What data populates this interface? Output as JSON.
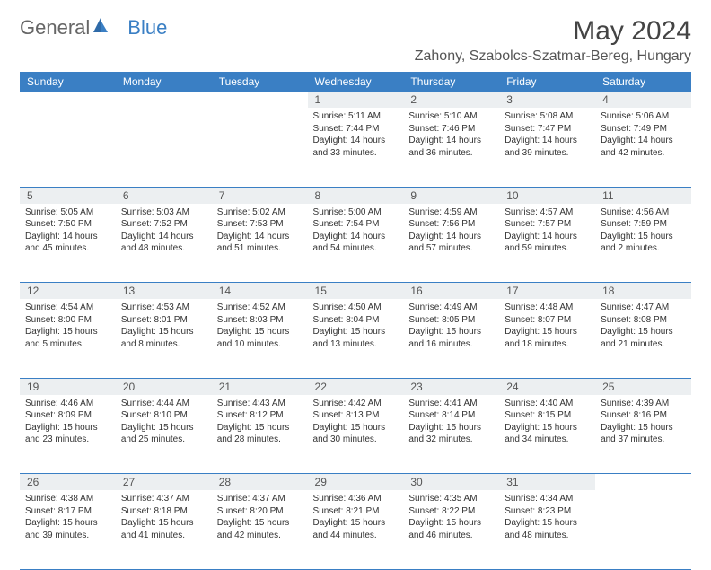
{
  "brand": {
    "general": "General",
    "blue": "Blue"
  },
  "title": "May 2024",
  "location": "Zahony, Szabolcs-Szatmar-Bereg, Hungary",
  "colors": {
    "header_bg": "#3a7fc4",
    "header_text": "#ffffff",
    "daynum_bg": "#eceff1",
    "border": "#3a7fc4",
    "body_text": "#333333",
    "title_text": "#444444"
  },
  "weekdays": [
    "Sunday",
    "Monday",
    "Tuesday",
    "Wednesday",
    "Thursday",
    "Friday",
    "Saturday"
  ],
  "weeks": [
    {
      "nums": [
        "",
        "",
        "",
        "1",
        "2",
        "3",
        "4"
      ],
      "cells": [
        null,
        null,
        null,
        {
          "sunrise": "Sunrise: 5:11 AM",
          "sunset": "Sunset: 7:44 PM",
          "day1": "Daylight: 14 hours",
          "day2": "and 33 minutes."
        },
        {
          "sunrise": "Sunrise: 5:10 AM",
          "sunset": "Sunset: 7:46 PM",
          "day1": "Daylight: 14 hours",
          "day2": "and 36 minutes."
        },
        {
          "sunrise": "Sunrise: 5:08 AM",
          "sunset": "Sunset: 7:47 PM",
          "day1": "Daylight: 14 hours",
          "day2": "and 39 minutes."
        },
        {
          "sunrise": "Sunrise: 5:06 AM",
          "sunset": "Sunset: 7:49 PM",
          "day1": "Daylight: 14 hours",
          "day2": "and 42 minutes."
        }
      ]
    },
    {
      "nums": [
        "5",
        "6",
        "7",
        "8",
        "9",
        "10",
        "11"
      ],
      "cells": [
        {
          "sunrise": "Sunrise: 5:05 AM",
          "sunset": "Sunset: 7:50 PM",
          "day1": "Daylight: 14 hours",
          "day2": "and 45 minutes."
        },
        {
          "sunrise": "Sunrise: 5:03 AM",
          "sunset": "Sunset: 7:52 PM",
          "day1": "Daylight: 14 hours",
          "day2": "and 48 minutes."
        },
        {
          "sunrise": "Sunrise: 5:02 AM",
          "sunset": "Sunset: 7:53 PM",
          "day1": "Daylight: 14 hours",
          "day2": "and 51 minutes."
        },
        {
          "sunrise": "Sunrise: 5:00 AM",
          "sunset": "Sunset: 7:54 PM",
          "day1": "Daylight: 14 hours",
          "day2": "and 54 minutes."
        },
        {
          "sunrise": "Sunrise: 4:59 AM",
          "sunset": "Sunset: 7:56 PM",
          "day1": "Daylight: 14 hours",
          "day2": "and 57 minutes."
        },
        {
          "sunrise": "Sunrise: 4:57 AM",
          "sunset": "Sunset: 7:57 PM",
          "day1": "Daylight: 14 hours",
          "day2": "and 59 minutes."
        },
        {
          "sunrise": "Sunrise: 4:56 AM",
          "sunset": "Sunset: 7:59 PM",
          "day1": "Daylight: 15 hours",
          "day2": "and 2 minutes."
        }
      ]
    },
    {
      "nums": [
        "12",
        "13",
        "14",
        "15",
        "16",
        "17",
        "18"
      ],
      "cells": [
        {
          "sunrise": "Sunrise: 4:54 AM",
          "sunset": "Sunset: 8:00 PM",
          "day1": "Daylight: 15 hours",
          "day2": "and 5 minutes."
        },
        {
          "sunrise": "Sunrise: 4:53 AM",
          "sunset": "Sunset: 8:01 PM",
          "day1": "Daylight: 15 hours",
          "day2": "and 8 minutes."
        },
        {
          "sunrise": "Sunrise: 4:52 AM",
          "sunset": "Sunset: 8:03 PM",
          "day1": "Daylight: 15 hours",
          "day2": "and 10 minutes."
        },
        {
          "sunrise": "Sunrise: 4:50 AM",
          "sunset": "Sunset: 8:04 PM",
          "day1": "Daylight: 15 hours",
          "day2": "and 13 minutes."
        },
        {
          "sunrise": "Sunrise: 4:49 AM",
          "sunset": "Sunset: 8:05 PM",
          "day1": "Daylight: 15 hours",
          "day2": "and 16 minutes."
        },
        {
          "sunrise": "Sunrise: 4:48 AM",
          "sunset": "Sunset: 8:07 PM",
          "day1": "Daylight: 15 hours",
          "day2": "and 18 minutes."
        },
        {
          "sunrise": "Sunrise: 4:47 AM",
          "sunset": "Sunset: 8:08 PM",
          "day1": "Daylight: 15 hours",
          "day2": "and 21 minutes."
        }
      ]
    },
    {
      "nums": [
        "19",
        "20",
        "21",
        "22",
        "23",
        "24",
        "25"
      ],
      "cells": [
        {
          "sunrise": "Sunrise: 4:46 AM",
          "sunset": "Sunset: 8:09 PM",
          "day1": "Daylight: 15 hours",
          "day2": "and 23 minutes."
        },
        {
          "sunrise": "Sunrise: 4:44 AM",
          "sunset": "Sunset: 8:10 PM",
          "day1": "Daylight: 15 hours",
          "day2": "and 25 minutes."
        },
        {
          "sunrise": "Sunrise: 4:43 AM",
          "sunset": "Sunset: 8:12 PM",
          "day1": "Daylight: 15 hours",
          "day2": "and 28 minutes."
        },
        {
          "sunrise": "Sunrise: 4:42 AM",
          "sunset": "Sunset: 8:13 PM",
          "day1": "Daylight: 15 hours",
          "day2": "and 30 minutes."
        },
        {
          "sunrise": "Sunrise: 4:41 AM",
          "sunset": "Sunset: 8:14 PM",
          "day1": "Daylight: 15 hours",
          "day2": "and 32 minutes."
        },
        {
          "sunrise": "Sunrise: 4:40 AM",
          "sunset": "Sunset: 8:15 PM",
          "day1": "Daylight: 15 hours",
          "day2": "and 34 minutes."
        },
        {
          "sunrise": "Sunrise: 4:39 AM",
          "sunset": "Sunset: 8:16 PM",
          "day1": "Daylight: 15 hours",
          "day2": "and 37 minutes."
        }
      ]
    },
    {
      "nums": [
        "26",
        "27",
        "28",
        "29",
        "30",
        "31",
        ""
      ],
      "cells": [
        {
          "sunrise": "Sunrise: 4:38 AM",
          "sunset": "Sunset: 8:17 PM",
          "day1": "Daylight: 15 hours",
          "day2": "and 39 minutes."
        },
        {
          "sunrise": "Sunrise: 4:37 AM",
          "sunset": "Sunset: 8:18 PM",
          "day1": "Daylight: 15 hours",
          "day2": "and 41 minutes."
        },
        {
          "sunrise": "Sunrise: 4:37 AM",
          "sunset": "Sunset: 8:20 PM",
          "day1": "Daylight: 15 hours",
          "day2": "and 42 minutes."
        },
        {
          "sunrise": "Sunrise: 4:36 AM",
          "sunset": "Sunset: 8:21 PM",
          "day1": "Daylight: 15 hours",
          "day2": "and 44 minutes."
        },
        {
          "sunrise": "Sunrise: 4:35 AM",
          "sunset": "Sunset: 8:22 PM",
          "day1": "Daylight: 15 hours",
          "day2": "and 46 minutes."
        },
        {
          "sunrise": "Sunrise: 4:34 AM",
          "sunset": "Sunset: 8:23 PM",
          "day1": "Daylight: 15 hours",
          "day2": "and 48 minutes."
        },
        null
      ]
    }
  ]
}
